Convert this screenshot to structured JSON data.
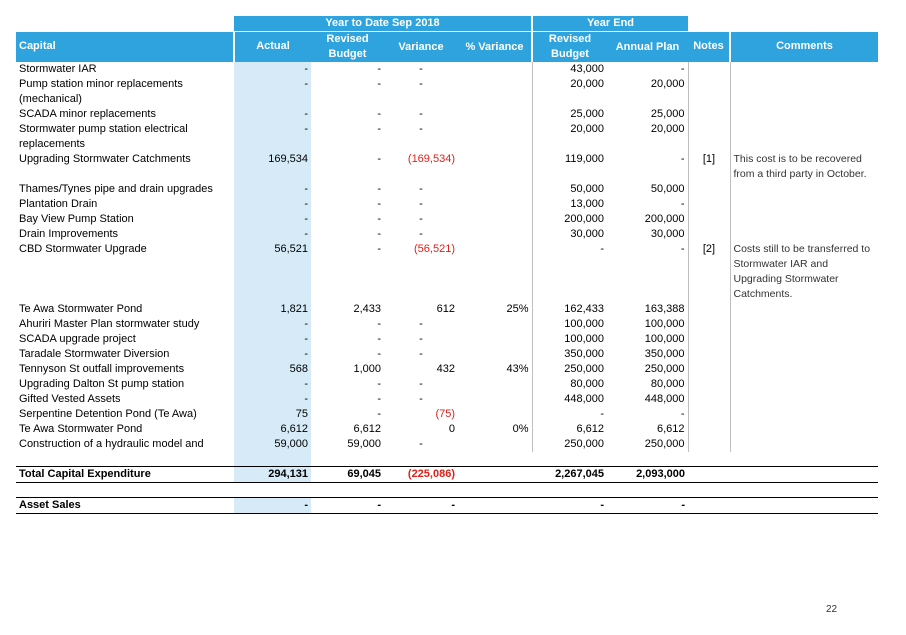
{
  "header": {
    "ytd_group": "Year to Date Sep 2018",
    "ye_group": "Year End",
    "col_capital": "Capital",
    "col_actual": "Actual",
    "col_revised_budget": "Revised Budget",
    "col_variance": "Variance",
    "col_pct_variance": "% Variance",
    "col_ye_revised_budget": "Revised Budget",
    "col_annual_plan": "Annual Plan",
    "col_notes": "Notes",
    "col_comments": "Comments"
  },
  "rows": [
    {
      "name": "Stormwater IAR",
      "actual": "-",
      "budget": "-",
      "variance": "-",
      "pct": "",
      "ye_budget": "43,000",
      "annual": "-",
      "note": "",
      "comment": ""
    },
    {
      "name": "Pump station minor replacements (mechanical)",
      "actual": "-",
      "budget": "-",
      "variance": "-",
      "pct": "",
      "ye_budget": "20,000",
      "annual": "20,000",
      "note": "",
      "comment": ""
    },
    {
      "name": "SCADA minor replacements",
      "actual": "-",
      "budget": "-",
      "variance": "-",
      "pct": "",
      "ye_budget": "25,000",
      "annual": "25,000",
      "note": "",
      "comment": ""
    },
    {
      "name": "Stormwater pump station electrical replacements",
      "actual": "-",
      "budget": "-",
      "variance": "-",
      "pct": "",
      "ye_budget": "20,000",
      "annual": "20,000",
      "note": "",
      "comment": ""
    },
    {
      "name": "Upgrading Stormwater Catchments",
      "actual": "169,534",
      "budget": "-",
      "variance": "(169,534)",
      "pct": "",
      "ye_budget": "119,000",
      "annual": "-",
      "note": "[1]",
      "comment": "This cost is to be recovered from a third party in October."
    },
    {
      "name": "Thames/Tynes pipe and drain upgrades",
      "actual": "-",
      "budget": "-",
      "variance": "-",
      "pct": "",
      "ye_budget": "50,000",
      "annual": "50,000",
      "note": "",
      "comment": ""
    },
    {
      "name": "Plantation Drain",
      "actual": "-",
      "budget": "-",
      "variance": "-",
      "pct": "",
      "ye_budget": "13,000",
      "annual": "-",
      "note": "",
      "comment": ""
    },
    {
      "name": "Bay View Pump Station",
      "actual": "-",
      "budget": "-",
      "variance": "-",
      "pct": "",
      "ye_budget": "200,000",
      "annual": "200,000",
      "note": "",
      "comment": ""
    },
    {
      "name": "Drain Improvements",
      "actual": "-",
      "budget": "-",
      "variance": "-",
      "pct": "",
      "ye_budget": "30,000",
      "annual": "30,000",
      "note": "",
      "comment": ""
    },
    {
      "name": "CBD Stormwater Upgrade",
      "actual": "56,521",
      "budget": "-",
      "variance": "(56,521)",
      "pct": "",
      "ye_budget": "-",
      "annual": "-",
      "note": "[2]",
      "comment": "Costs still to be transferred to Stormwater IAR and Upgrading Stormwater Catchments."
    },
    {
      "name": "Te Awa Stormwater Pond",
      "actual": "1,821",
      "budget": "2,433",
      "variance": "612",
      "pct": "25%",
      "ye_budget": "162,433",
      "annual": "163,388",
      "note": "",
      "comment": ""
    },
    {
      "name": "Ahuriri Master Plan stormwater study",
      "actual": "-",
      "budget": "-",
      "variance": "-",
      "pct": "",
      "ye_budget": "100,000",
      "annual": "100,000",
      "note": "",
      "comment": ""
    },
    {
      "name": "SCADA upgrade project",
      "actual": "-",
      "budget": "-",
      "variance": "-",
      "pct": "",
      "ye_budget": "100,000",
      "annual": "100,000",
      "note": "",
      "comment": ""
    },
    {
      "name": "Taradale Stormwater Diversion",
      "actual": "-",
      "budget": "-",
      "variance": "-",
      "pct": "",
      "ye_budget": "350,000",
      "annual": "350,000",
      "note": "",
      "comment": ""
    },
    {
      "name": "Tennyson St outfall improvements",
      "actual": "568",
      "budget": "1,000",
      "variance": "432",
      "pct": "43%",
      "ye_budget": "250,000",
      "annual": "250,000",
      "note": "",
      "comment": ""
    },
    {
      "name": "Upgrading Dalton St pump station",
      "actual": "-",
      "budget": "-",
      "variance": "-",
      "pct": "",
      "ye_budget": "80,000",
      "annual": "80,000",
      "note": "",
      "comment": ""
    },
    {
      "name": "Gifted Vested Assets",
      "actual": "-",
      "budget": "-",
      "variance": "-",
      "pct": "",
      "ye_budget": "448,000",
      "annual": "448,000",
      "note": "",
      "comment": ""
    },
    {
      "name": "Serpentine Detention Pond (Te Awa)",
      "actual": "75",
      "budget": "-",
      "variance": "(75)",
      "pct": "",
      "ye_budget": "-",
      "annual": "-",
      "note": "",
      "comment": ""
    },
    {
      "name": "Te Awa Stormwater Pond",
      "actual": "6,612",
      "budget": "6,612",
      "variance": "0",
      "pct": "0%",
      "ye_budget": "6,612",
      "annual": "6,612",
      "note": "",
      "comment": ""
    },
    {
      "name": "Construction of a hydraulic model and",
      "actual": "59,000",
      "budget": "59,000",
      "variance": "-",
      "pct": "",
      "ye_budget": "250,000",
      "annual": "250,000",
      "note": "",
      "comment": ""
    }
  ],
  "total": {
    "name": "Total Capital Expenditure",
    "actual": "294,131",
    "budget": "69,045",
    "variance": "(225,086)",
    "pct": "",
    "ye_budget": "2,267,045",
    "annual": "2,093,000"
  },
  "asset_sales": {
    "name": "Asset Sales",
    "actual": "-",
    "budget": "-",
    "variance": "-",
    "pct": "",
    "ye_budget": "-",
    "annual": "-"
  },
  "page_number": "22",
  "colors": {
    "header_blue": "#2ea3dd",
    "actual_shade": "#d6ebf7",
    "negative_red": "#e0201a"
  }
}
